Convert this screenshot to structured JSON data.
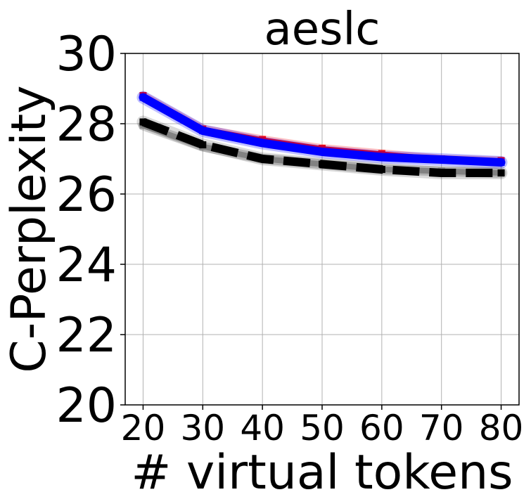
{
  "chart_data": {
    "type": "line",
    "title": "aeslc",
    "xlabel": "# virtual tokens",
    "ylabel": "C-Perplexity",
    "x": [
      20,
      30,
      40,
      50,
      60,
      70,
      80
    ],
    "xticks": [
      "20",
      "30",
      "40",
      "50",
      "60",
      "70",
      "80"
    ],
    "yticks": [
      "20",
      "22",
      "24",
      "26",
      "28",
      "30"
    ],
    "xlim": [
      17,
      83
    ],
    "ylim": [
      20,
      30
    ],
    "grid": true,
    "series": [
      {
        "color": "#ff0000",
        "style": "solid",
        "values": [
          28.8,
          27.85,
          27.55,
          27.3,
          27.15,
          27.0,
          26.95
        ]
      },
      {
        "color": "#0000ff",
        "style": "solid",
        "values": [
          28.75,
          27.8,
          27.45,
          27.2,
          27.05,
          26.98,
          26.9
        ]
      },
      {
        "color": "#999999",
        "style": "solid",
        "values": [
          27.95,
          27.35,
          27.0,
          26.85,
          26.7,
          26.65,
          26.6
        ]
      },
      {
        "color": "#000000",
        "style": "dashed",
        "values": [
          28.05,
          27.4,
          27.0,
          26.85,
          26.7,
          26.6,
          26.6
        ]
      }
    ]
  }
}
